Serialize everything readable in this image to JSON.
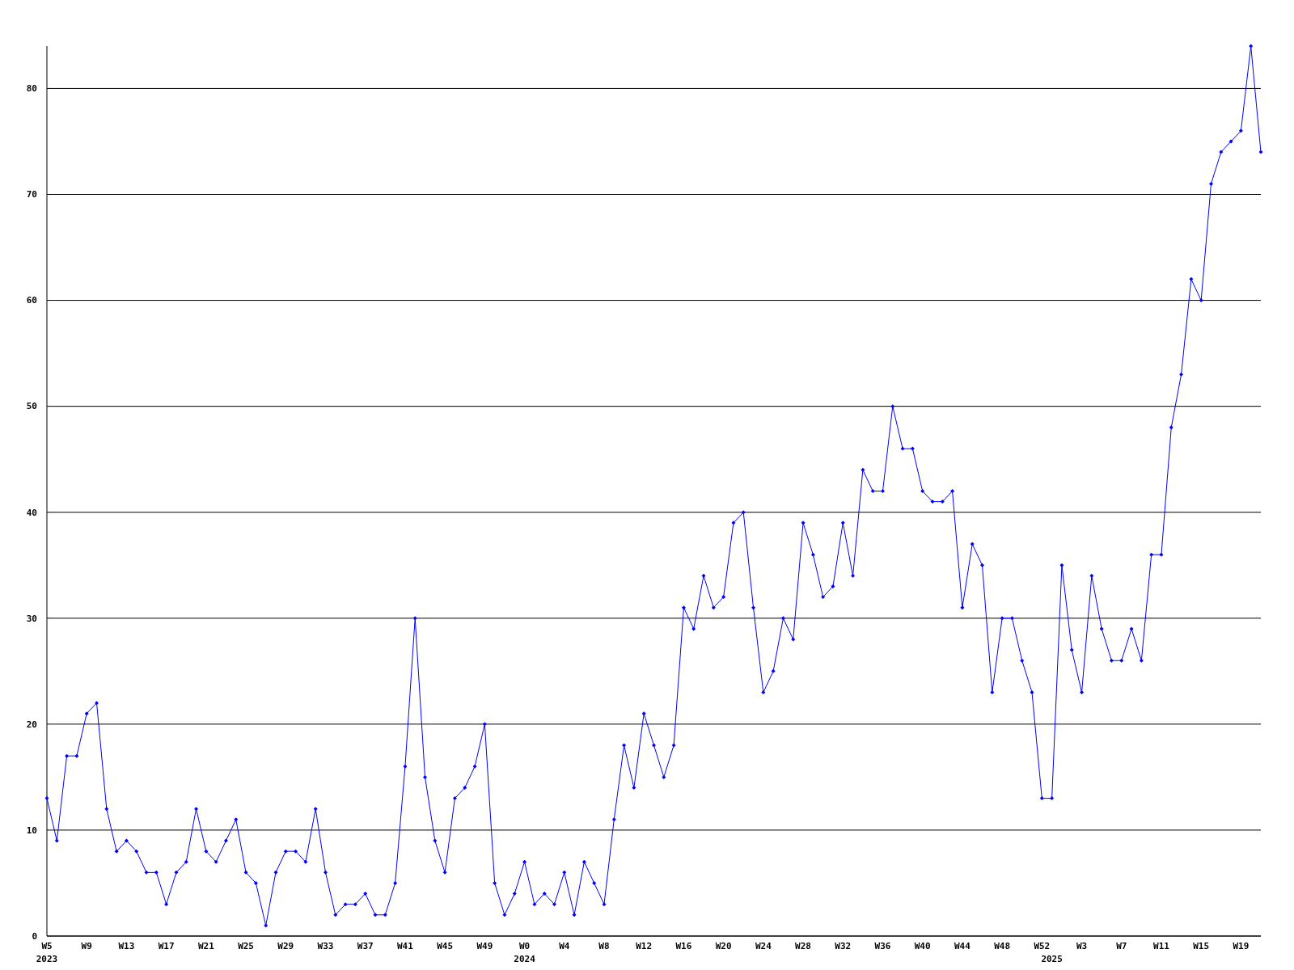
{
  "chart_data": {
    "type": "line",
    "categories": [
      "W5\n2023",
      null,
      null,
      null,
      "W9",
      null,
      null,
      null,
      "W13",
      null,
      null,
      null,
      "W17",
      null,
      null,
      null,
      "W21",
      null,
      null,
      null,
      "W25",
      null,
      null,
      null,
      "W29",
      null,
      null,
      null,
      "W33",
      null,
      null,
      null,
      "W37",
      null,
      null,
      null,
      "W41",
      null,
      null,
      null,
      "W45",
      null,
      null,
      null,
      "W49",
      null,
      null,
      null,
      "W0\n2024",
      null,
      null,
      null,
      "W4",
      null,
      null,
      null,
      "W8",
      null,
      null,
      null,
      "W12",
      null,
      null,
      null,
      "W16",
      null,
      null,
      null,
      "W20",
      null,
      null,
      null,
      "W24",
      null,
      null,
      null,
      "W28",
      null,
      null,
      null,
      "W32",
      null,
      null,
      null,
      "W36",
      null,
      null,
      null,
      "W40",
      null,
      null,
      null,
      "W44",
      null,
      null,
      null,
      "W48",
      null,
      null,
      null,
      "W52",
      "\n2025",
      null,
      null,
      "W3",
      null,
      null,
      null,
      "W7",
      null,
      null,
      null,
      "W11",
      null,
      null,
      null,
      "W15",
      null,
      null,
      null,
      "W19",
      null,
      null
    ],
    "series": [
      {
        "color": "#0000ff",
        "values": [
          13,
          9,
          17,
          17,
          21,
          22,
          12,
          8,
          9,
          8,
          6,
          6,
          3,
          6,
          7,
          12,
          8,
          7,
          9,
          11,
          6,
          5,
          1,
          6,
          8,
          8,
          7,
          12,
          6,
          2,
          3,
          3,
          4,
          2,
          2,
          5,
          16,
          30,
          15,
          9,
          6,
          13,
          14,
          16,
          20,
          5,
          2,
          4,
          7,
          3,
          4,
          3,
          6,
          2,
          7,
          5,
          3,
          11,
          18,
          14,
          21,
          18,
          15,
          18,
          31,
          29,
          34,
          31,
          32,
          39,
          40,
          31,
          23,
          25,
          30,
          28,
          39,
          36,
          32,
          33,
          39,
          34,
          44,
          42,
          42,
          50,
          46,
          46,
          42,
          41,
          41,
          42,
          31,
          37,
          35,
          23,
          30,
          30,
          26,
          23,
          13,
          13,
          35,
          27,
          23,
          34,
          29,
          26,
          26,
          29,
          26,
          36,
          36,
          48,
          53,
          62,
          60,
          71,
          74,
          75,
          76,
          84,
          74
        ]
      }
    ],
    "ylim": [
      0,
      84
    ],
    "yticks": [
      0,
      10,
      20,
      30,
      40,
      50,
      60,
      70,
      80
    ],
    "grid": "y",
    "marker": "diamond",
    "line_style": "solid"
  }
}
